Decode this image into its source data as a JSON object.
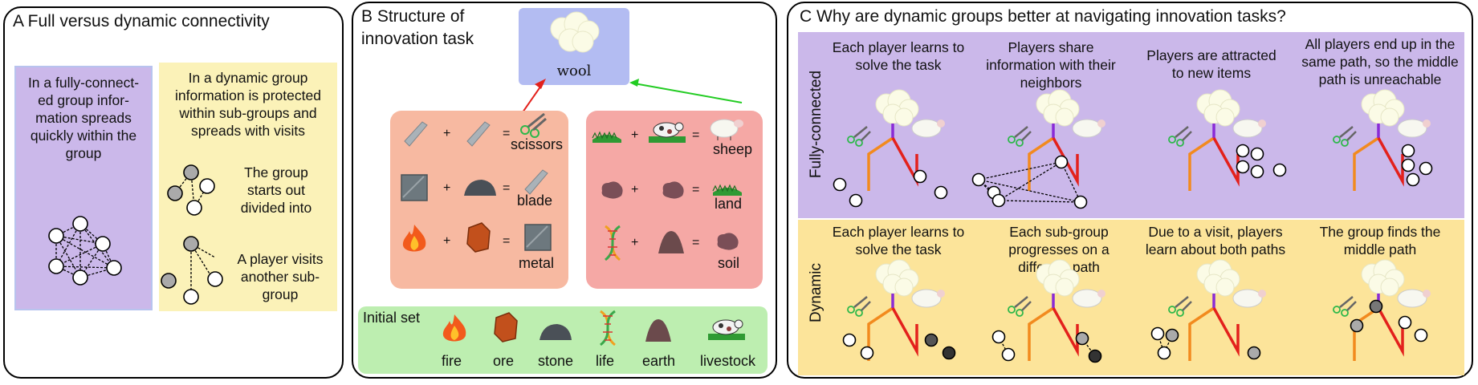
{
  "panel_a": {
    "title": "A Full versus dynamic connectivity",
    "full_box_text": "In a fully-connect-ed group infor-mation spreads quickly within the group",
    "dynamic_box_text": "In a dynamic group information is protected within sub-groups and spreads with visits",
    "divided_text": "The group starts out divided into",
    "visit_text": "A player visits another sub-group",
    "colors": {
      "full_box": "#cbb8ea",
      "dynamic_box": "#fbf2b8"
    }
  },
  "panel_b": {
    "title_line1": "B Structure of",
    "title_line2": "innovation task",
    "goal": "wool",
    "left_recipes": [
      {
        "a": "+",
        "eq": "=",
        "result": "scissors"
      },
      {
        "a": "+",
        "eq": "=",
        "result": "blade"
      },
      {
        "a": "+",
        "eq": "=",
        "result": "metal"
      }
    ],
    "right_recipes": [
      {
        "a": "+",
        "eq": "=",
        "result": "sheep"
      },
      {
        "a": "+",
        "eq": "=",
        "result": "land"
      },
      {
        "a": "+",
        "eq": "=",
        "result": "soil"
      }
    ],
    "initial_label": "Initial set",
    "initial_items": [
      "fire",
      "ore",
      "stone",
      "life",
      "earth",
      "livestock"
    ],
    "colors": {
      "goal": "#b3bcf2",
      "left_path": "#f7b9a1",
      "right_path": "#f5a8a5",
      "initial": "#bdeeb0",
      "arrow_left": "#e3211c",
      "arrow_right": "#22cc22"
    }
  },
  "panel_c": {
    "title": "C Why are dynamic groups better at navigating innovation tasks?",
    "row_fully": "Fully-connected",
    "row_dynamic": "Dynamic",
    "fully_captions": [
      "Each player learns to solve the task",
      "Players share information with their neighbors",
      "Players are attracted to new items",
      "All players end up in the same path, so the middle path is unreachable"
    ],
    "dynamic_captions": [
      "Each player learns to solve the task",
      "Each sub-group progresses on a different path",
      "Due to a visit, players learn about both paths",
      "The group finds the middle path"
    ],
    "colors": {
      "fully_row": "#cbb8ea",
      "dynamic_row": "#fce49a",
      "orange_path": "#f28a1e",
      "purple_path": "#8a2bd6",
      "red_path": "#e3211c"
    }
  }
}
